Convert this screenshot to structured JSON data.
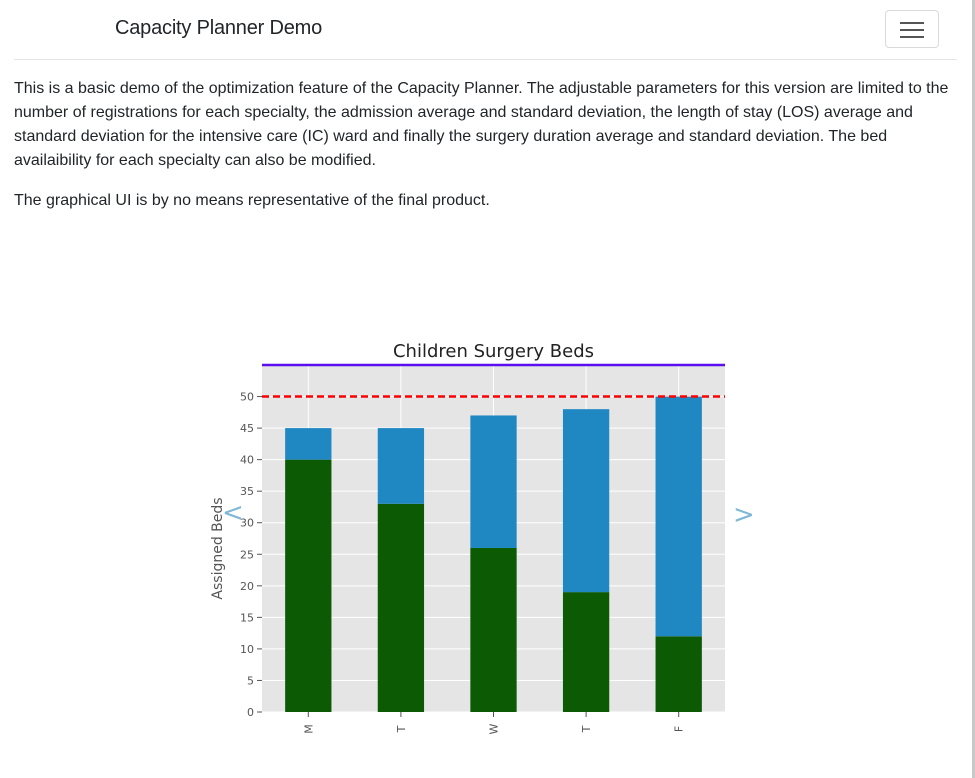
{
  "navbar": {
    "brand": "Capacity Planner Demo",
    "toggler_icon": "hamburger-icon"
  },
  "intro": {
    "paragraph1": "This is a basic demo of the optimization feature of the Capacity Planner. The adjustable parameters for this version are limited to the number of registrations for each specialty, the admission average and standard deviation, the length of stay (LOS) average and standard deviation for the intensive care (IC) ward and finally the surgery duration average and standard deviation. The bed availaibility for each specialty can also be modified.",
    "paragraph2": "The graphical UI is by no means representative of the final product."
  },
  "carousel": {
    "prev_label": "<",
    "next_label": ">"
  },
  "chart_data": {
    "type": "bar",
    "title": "Children Surgery Beds",
    "ylabel": "Assigned Beds",
    "xlabel": "",
    "categories": [
      "M",
      "T",
      "W",
      "T",
      "F"
    ],
    "ylim": [
      0,
      55
    ],
    "yticks": [
      0,
      5,
      10,
      15,
      20,
      25,
      30,
      35,
      40,
      45,
      50
    ],
    "stacked": true,
    "series": [
      {
        "color": "#0d5a05",
        "values": [
          40,
          33,
          26,
          19,
          12
        ]
      },
      {
        "color": "#1f87c2",
        "values": [
          5,
          12,
          21,
          29,
          38
        ]
      }
    ],
    "reference_lines": [
      {
        "value": 50,
        "color": "#ff0000",
        "style": "dashed"
      },
      {
        "value": 55,
        "color": "#5b0ff0",
        "style": "solid"
      }
    ],
    "grid": true,
    "background": "#e5e5e5"
  }
}
